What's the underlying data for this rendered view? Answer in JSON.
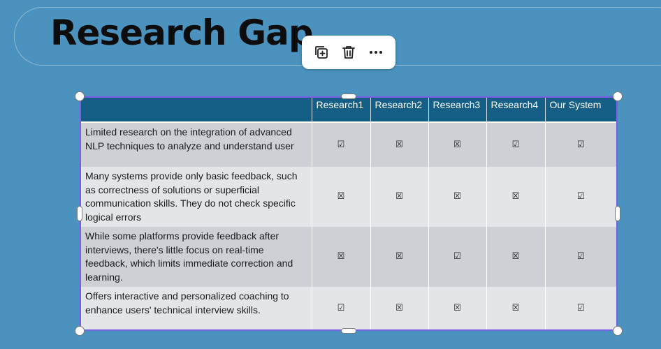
{
  "slide": {
    "title": "Research Gap"
  },
  "toolbar": {
    "icons": [
      "duplicate-icon",
      "trash-icon",
      "more-icon"
    ]
  },
  "table": {
    "headers": [
      "",
      "Research1",
      "Research2",
      "Research3",
      "Research4",
      "Our System"
    ],
    "rows": [
      {
        "text": "Limited research on the integration of advanced NLP techniques to analyze and understand user",
        "marks": [
          "☑",
          "☒",
          "☒",
          "☑",
          "☑"
        ]
      },
      {
        "text": "Many systems provide only basic feedback, such as correctness of solutions or superficial communication skills. They do not check specific logical errors",
        "marks": [
          "☒",
          "☒",
          "☒",
          "☒",
          "☑"
        ]
      },
      {
        "text": "While some platforms provide feedback after interviews, there's little focus on real-time feedback, which limits immediate correction and learning.",
        "marks": [
          "☒",
          "☒",
          "☑",
          "☒",
          "☑"
        ]
      },
      {
        "text": "Offers interactive and personalized coaching to enhance users' technical interview skills.",
        "marks": [
          "☑",
          "☒",
          "☒",
          "☒",
          "☑"
        ]
      }
    ]
  },
  "colors": {
    "background": "#4b93be",
    "header": "#155f87",
    "selection": "#7b5ee6"
  }
}
